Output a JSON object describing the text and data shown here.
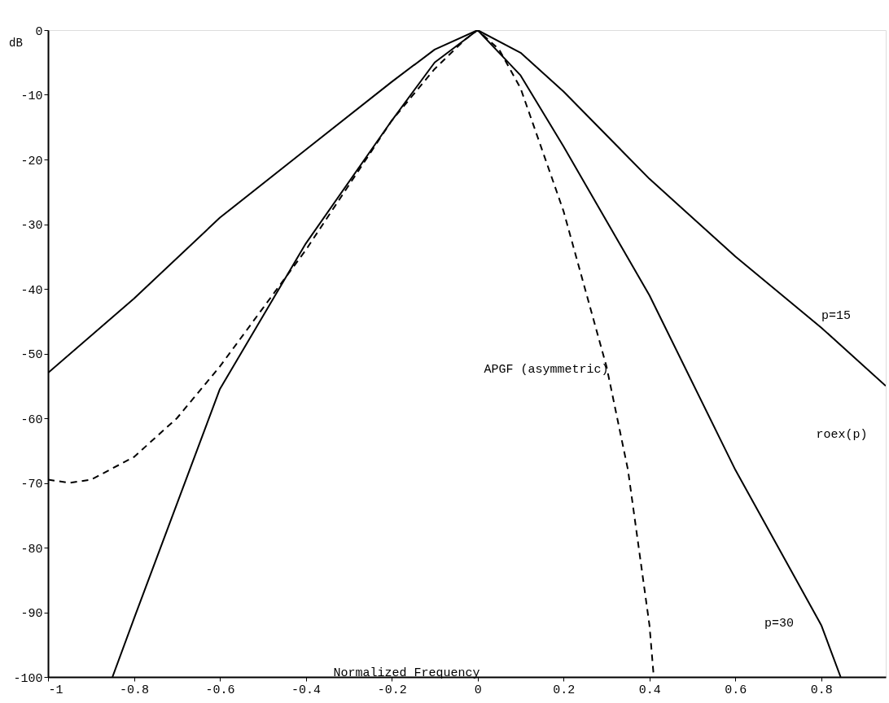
{
  "chart_data": {
    "type": "line",
    "xlabel": "Normalized Frequency",
    "ylabel": "dB",
    "xlim": [
      -1,
      0.95
    ],
    "ylim": [
      -100,
      0
    ],
    "xticks": [
      -1,
      -0.8,
      -0.6,
      -0.4,
      -0.2,
      0,
      0.2,
      0.4,
      0.6,
      0.8
    ],
    "yticks": [
      0,
      -10,
      -20,
      -30,
      -40,
      -50,
      -60,
      -70,
      -80,
      -90,
      -100
    ],
    "grid": false,
    "marker": "none",
    "series": [
      {
        "name": "p=15",
        "color": "#000000",
        "line_style": "solid",
        "x": [
          -1,
          -0.8,
          -0.6,
          -0.4,
          -0.2,
          -0.1,
          0,
          0.1,
          0.2,
          0.4,
          0.6,
          0.8,
          0.95
        ],
        "values": [
          -53,
          -41.5,
          -29,
          -18.5,
          -8,
          -3,
          0,
          -3.5,
          -9.5,
          -23,
          -35,
          -46,
          -55
        ]
      },
      {
        "name": "p=30",
        "color": "#000000",
        "line_style": "solid",
        "x": [
          -0.85,
          -0.8,
          -0.6,
          -0.4,
          -0.2,
          -0.1,
          0,
          0.1,
          0.2,
          0.4,
          0.6,
          0.8,
          0.845
        ],
        "values": [
          -100,
          -91,
          -55.5,
          -33,
          -14,
          -5,
          0,
          -7,
          -18,
          -41,
          -68,
          -92,
          -100
        ]
      },
      {
        "name": "APGF (asymmetric)",
        "color": "#000000",
        "line_style": "dashed",
        "x": [
          -1,
          -0.95,
          -0.9,
          -0.8,
          -0.7,
          -0.6,
          -0.5,
          -0.4,
          -0.3,
          -0.2,
          -0.1,
          -0.03,
          0,
          0.05,
          0.1,
          0.2,
          0.3,
          0.35,
          0.4,
          0.41
        ],
        "values": [
          -69.5,
          -70,
          -69.5,
          -66,
          -60,
          -52,
          -43,
          -34,
          -24,
          -14,
          -6,
          -1.5,
          0,
          -3,
          -9,
          -28,
          -52,
          -68,
          -92,
          -100
        ]
      }
    ],
    "annotations": [
      "roex(p)"
    ]
  }
}
